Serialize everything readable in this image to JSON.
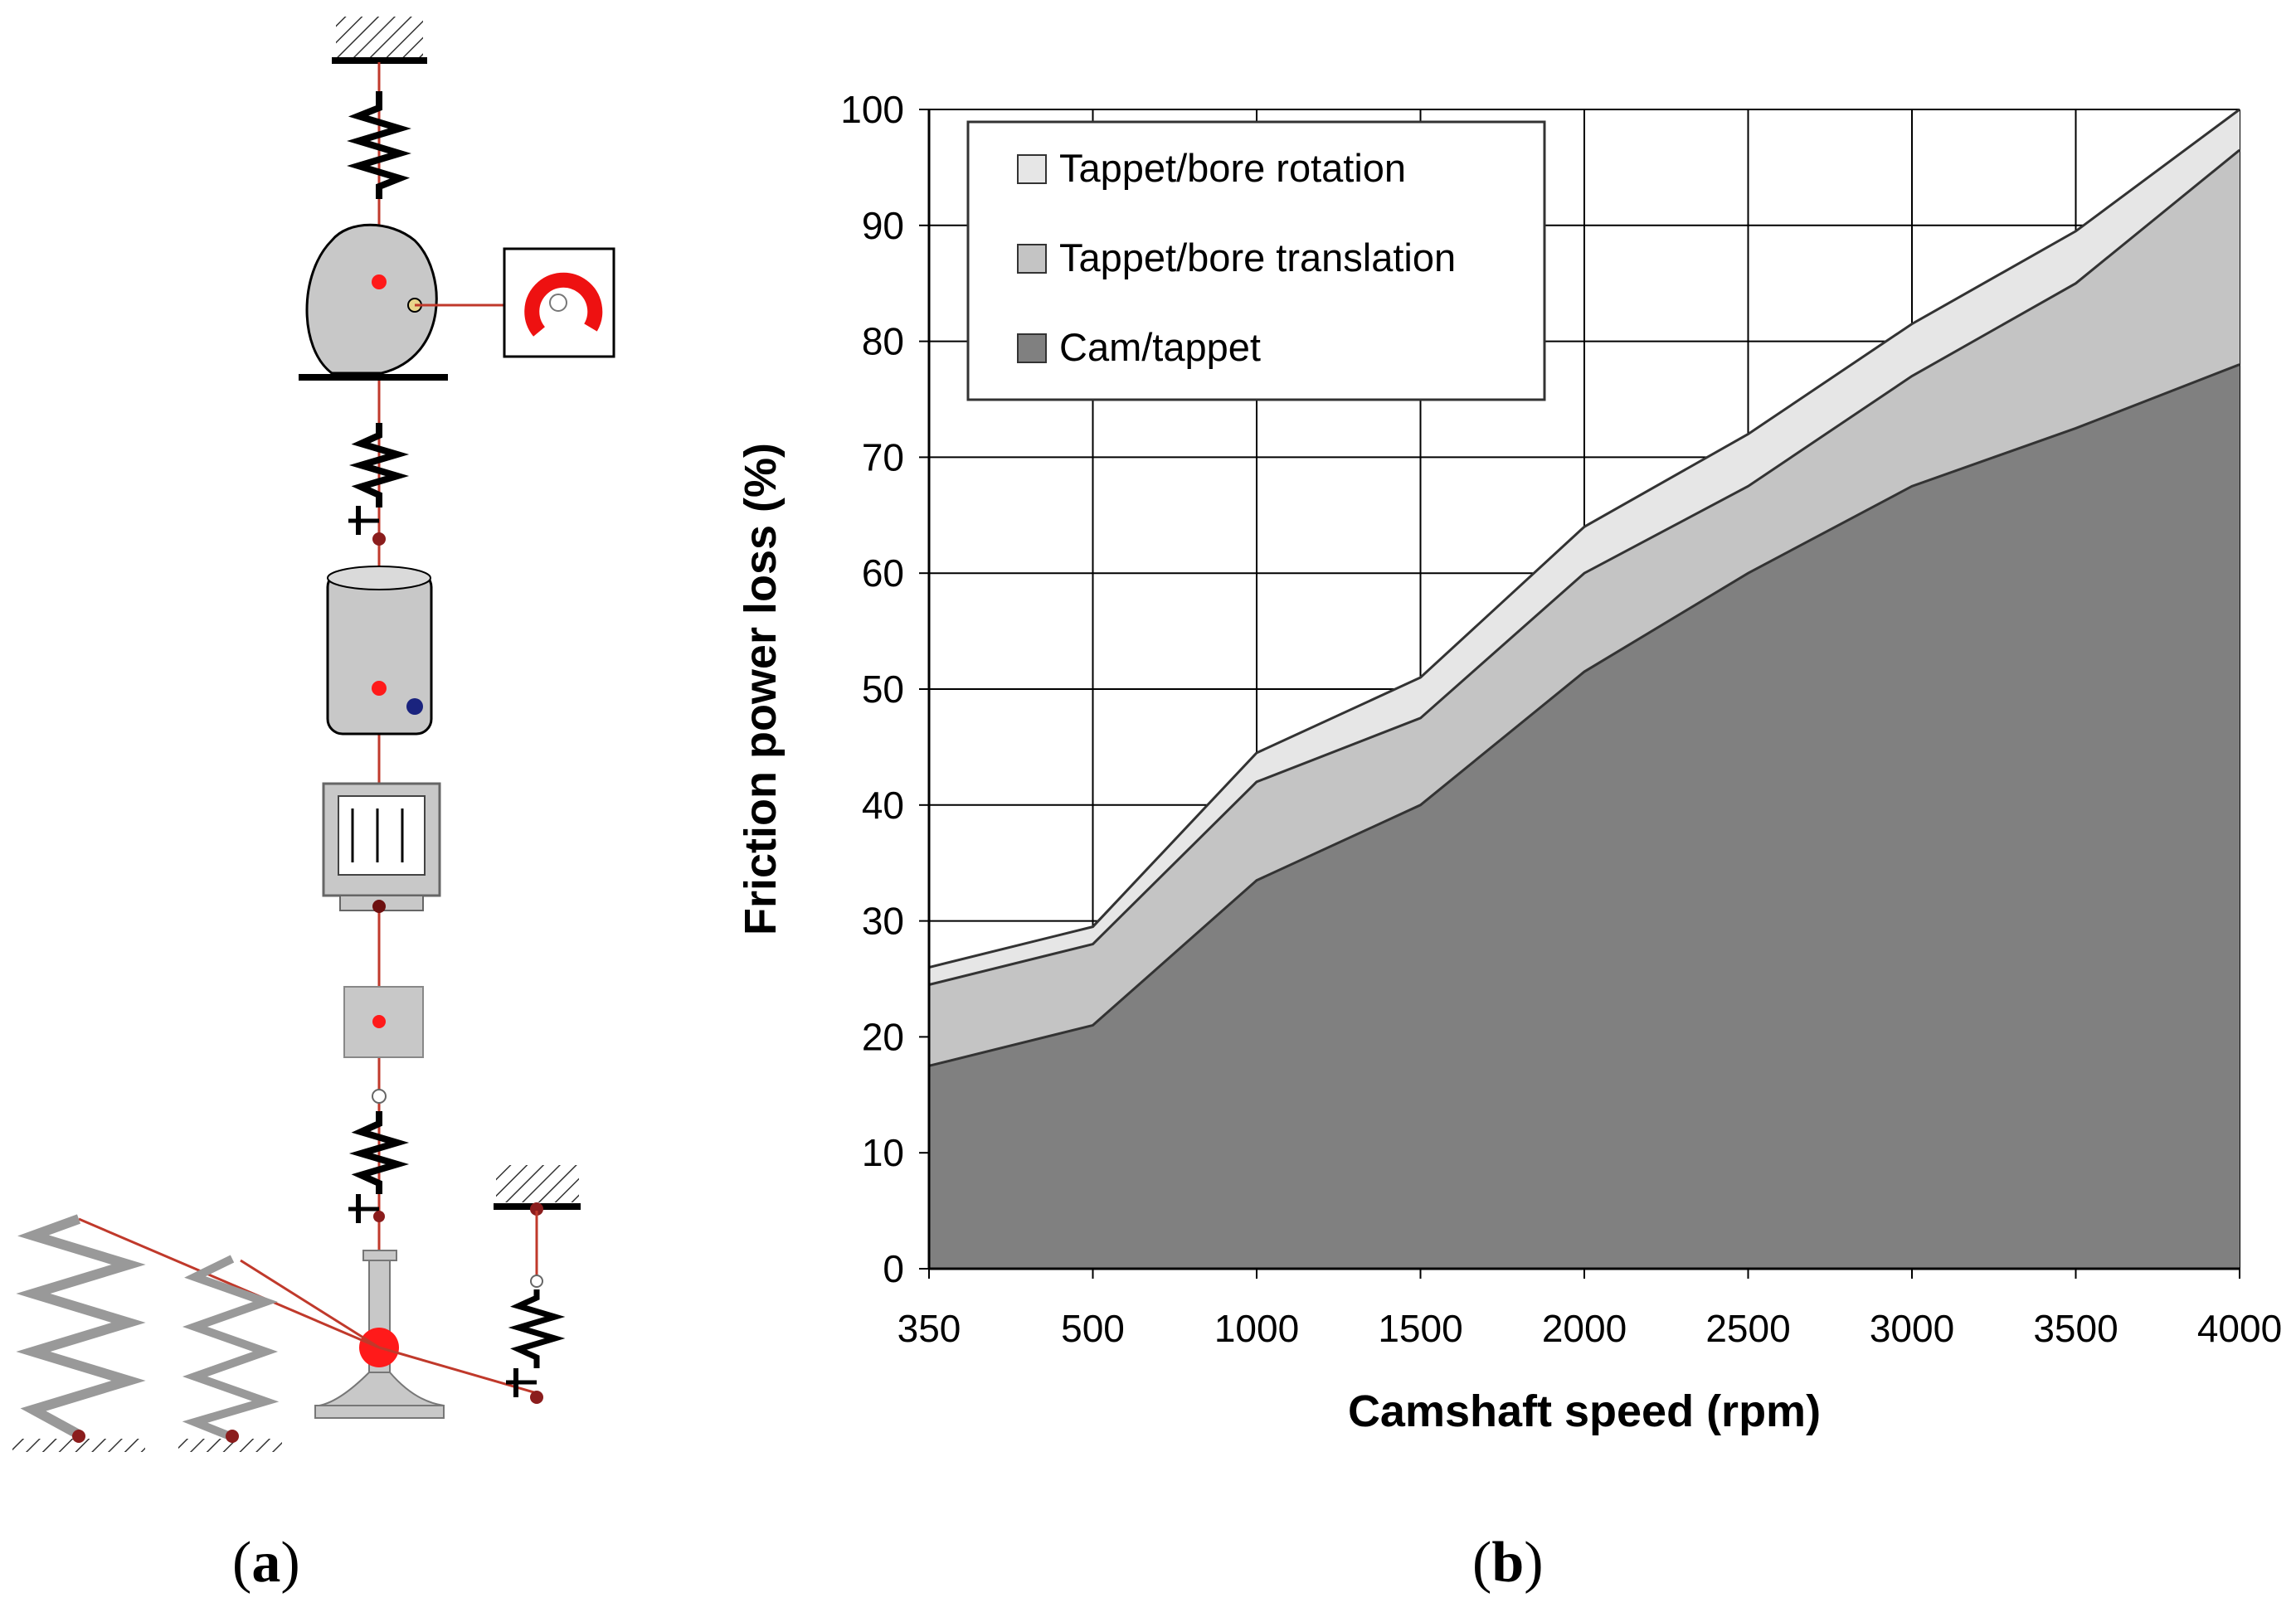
{
  "panel_labels": {
    "a": "a",
    "b": "b"
  },
  "colors": {
    "rotation_fill": "#e6e6e6",
    "translation_fill": "#c4c4c4",
    "cam_tappet_fill": "#808080",
    "grid": "#000000",
    "diagram_link": "#c0392b",
    "diagram_body": "#c8c8c8",
    "diagram_joint_red": "#ff1a1a",
    "diagram_joint_blue": "#1a237e"
  },
  "diagram": {
    "components": [
      "ground-top",
      "cam",
      "motor-icon",
      "lash-spring",
      "tappet",
      "hydraulic-lash-adjuster",
      "pushrod-mass",
      "valve-spring-stiffness",
      "valve",
      "valve-springs",
      "seat-damper"
    ]
  },
  "chart_data": {
    "type": "area",
    "stacked": true,
    "categories": [
      "350",
      "500",
      "1000",
      "1500",
      "2000",
      "2500",
      "3000",
      "3500",
      "4000"
    ],
    "series": [
      {
        "name": "Cam/tappet",
        "values": [
          17.5,
          21,
          33.5,
          40,
          51.5,
          60,
          67.5,
          72.5,
          78
        ]
      },
      {
        "name": "Tappet/bore translation",
        "values": [
          7,
          7,
          8.5,
          7.5,
          8.5,
          7.5,
          9.5,
          12.5,
          18.5
        ]
      },
      {
        "name": "Tappet/bore rotation",
        "values": [
          1.5,
          1.5,
          2.5,
          3.5,
          4,
          4.5,
          4.5,
          4.5,
          3.5
        ]
      }
    ],
    "legend": {
      "position": "top-left",
      "entries": [
        "Tappet/bore rotation",
        "Tappet/bore translation",
        "Cam/tappet"
      ]
    },
    "xlabel": "Camshaft speed (rpm)",
    "ylabel": "Friction power loss (%)",
    "ylim": [
      0,
      100
    ],
    "yticks": [
      "0",
      "10",
      "20",
      "30",
      "40",
      "50",
      "60",
      "70",
      "80",
      "90",
      "100"
    ],
    "grid": true
  }
}
